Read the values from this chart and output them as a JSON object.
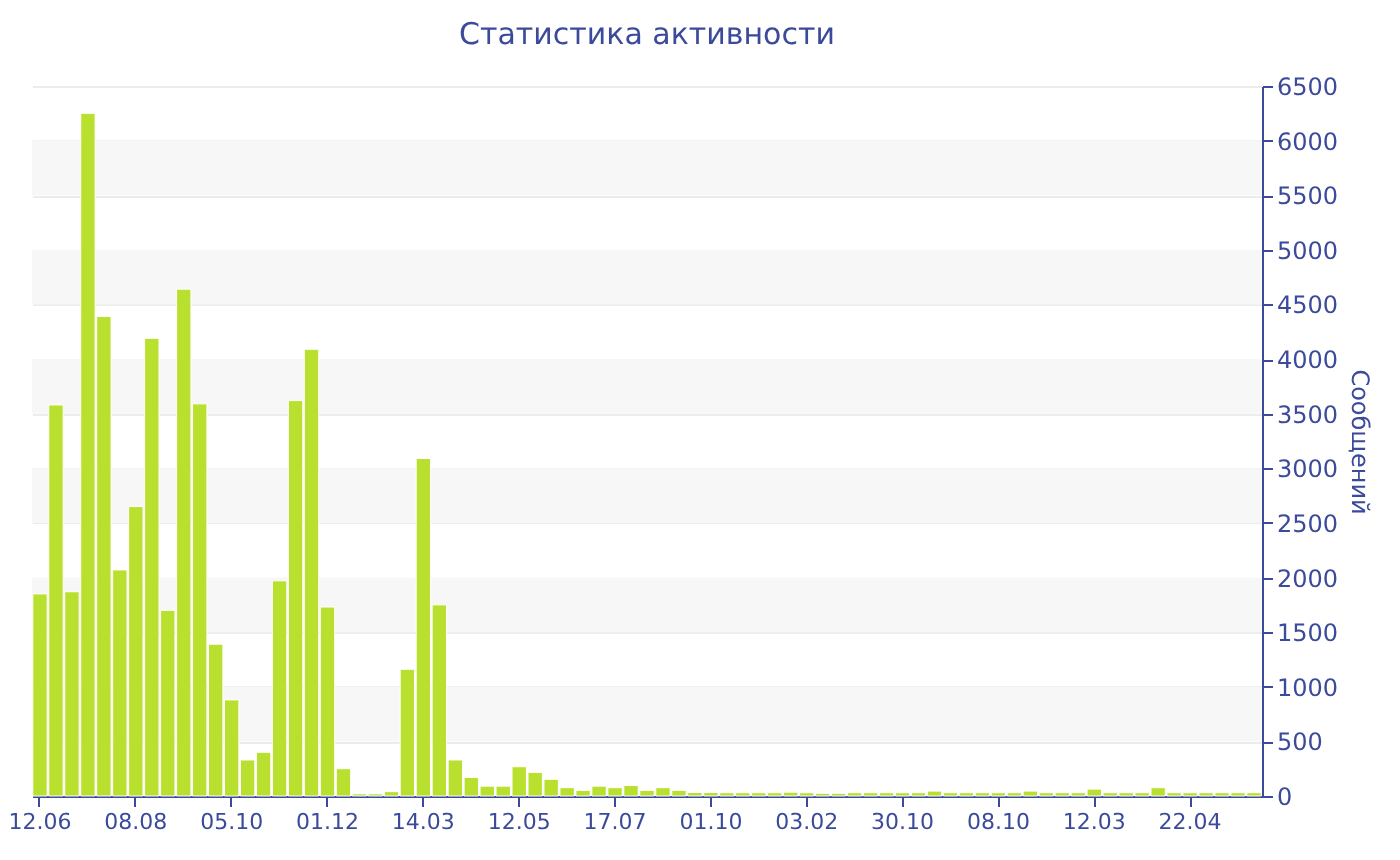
{
  "chart_data": {
    "type": "bar",
    "title": "Статистика активности",
    "ylabel": "Сообщений",
    "color": "#b9e02e",
    "categories": [
      "12.06",
      null,
      null,
      null,
      null,
      null,
      "08.08",
      null,
      null,
      null,
      null,
      null,
      "05.10",
      null,
      null,
      null,
      null,
      null,
      "01.12",
      null,
      null,
      null,
      null,
      null,
      "14.03",
      null,
      null,
      null,
      null,
      null,
      "12.05",
      null,
      null,
      null,
      null,
      null,
      "17.07",
      null,
      null,
      null,
      null,
      null,
      "01.10",
      null,
      null,
      null,
      null,
      null,
      "03.02",
      null,
      null,
      null,
      null,
      null,
      "30.10",
      null,
      null,
      null,
      null,
      null,
      "08.10",
      null,
      null,
      null,
      null,
      null,
      "12.03",
      null,
      null,
      null,
      null,
      null,
      "22.04",
      null,
      null,
      null,
      null
    ],
    "values": [
      1850,
      3580,
      1870,
      6250,
      4390,
      2070,
      2650,
      4190,
      1700,
      4640,
      3590,
      1390,
      880,
      330,
      400,
      1970,
      3620,
      4090,
      1730,
      250,
      20,
      20,
      40,
      1160,
      3090,
      1750,
      330,
      170,
      90,
      90,
      268,
      216,
      153,
      76,
      51,
      90,
      76,
      96,
      51,
      76,
      51,
      32,
      32,
      30,
      30,
      30,
      30,
      35,
      30,
      25,
      25,
      30,
      30,
      30,
      30,
      30,
      45,
      30,
      30,
      30,
      30,
      30,
      45,
      30,
      30,
      30,
      63,
      30,
      30,
      30,
      76,
      30,
      30,
      30,
      30,
      30,
      30
    ],
    "ylim": [
      0,
      6500
    ],
    "yticks": [
      0,
      500,
      1000,
      1500,
      2000,
      2500,
      3000,
      3500,
      4000,
      4500,
      5000,
      5500,
      6000,
      6500
    ],
    "grid": "y"
  }
}
